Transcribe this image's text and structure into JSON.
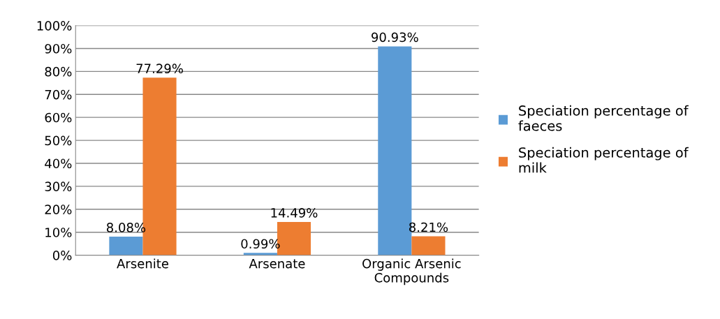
{
  "chart_data": {
    "type": "bar",
    "categories": [
      "Arsenite",
      "Arsenate",
      "Organic Arsenic\nCompounds"
    ],
    "series": [
      {
        "name": "Speciation percentage of\nfaeces",
        "color": "#5b9bd5",
        "values": [
          8.08,
          0.99,
          90.93
        ],
        "value_labels": [
          "8.08%",
          "0.99%",
          "90.93%"
        ]
      },
      {
        "name": "Speciation percentage of\nmilk",
        "color": "#ed7d31",
        "values": [
          77.29,
          14.49,
          8.21
        ],
        "value_labels": [
          "77.29%",
          "14.49%",
          "8.21%"
        ]
      }
    ],
    "ylim": [
      0,
      100
    ],
    "yticks": [
      {
        "value": 0,
        "label": "0%"
      },
      {
        "value": 10,
        "label": "10%"
      },
      {
        "value": 20,
        "label": "20%"
      },
      {
        "value": 30,
        "label": "30%"
      },
      {
        "value": 40,
        "label": "40%"
      },
      {
        "value": 50,
        "label": "50%"
      },
      {
        "value": 60,
        "label": "60%"
      },
      {
        "value": 70,
        "label": "70%"
      },
      {
        "value": 80,
        "label": "80%"
      },
      {
        "value": 90,
        "label": "90%"
      },
      {
        "value": 100,
        "label": "100%"
      }
    ],
    "grid": "y",
    "legend": "right"
  }
}
